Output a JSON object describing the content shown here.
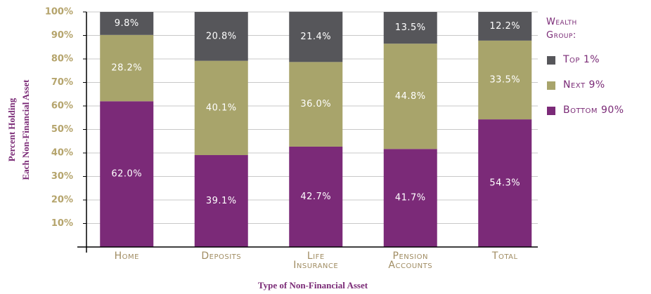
{
  "chart_data": {
    "type": "stacked_bar",
    "x_label": "Type of Non-Financial Asset",
    "y_label": [
      "Percent Holding",
      "Each Non-Financial Asset"
    ],
    "categories": [
      "Home",
      "Deposits",
      "Life Insurance",
      "Pension Accounts",
      "Total"
    ],
    "series": [
      {
        "name": "Bottom 90%",
        "color": "#7b2a78",
        "values": [
          62.0,
          39.1,
          42.7,
          41.7,
          54.3
        ],
        "value_labels": [
          "62.0%",
          "39.1%",
          "42.7%",
          "41.7%",
          "54.3%"
        ]
      },
      {
        "name": "Next 9%",
        "color": "#a8a46b",
        "values": [
          28.2,
          40.1,
          36.0,
          44.8,
          33.5
        ],
        "value_labels": [
          "28.2%",
          "40.1%",
          "36.0%",
          "44.8%",
          "33.5%"
        ]
      },
      {
        "name": "Top 1%",
        "color": "#56565a",
        "values": [
          9.8,
          20.8,
          21.4,
          13.5,
          12.2
        ],
        "value_labels": [
          "9.8%",
          "20.8%",
          "21.4%",
          "13.5%",
          "12.2%"
        ]
      }
    ],
    "legend_title": "Wealth Group:",
    "legend": "right",
    "ylim": [
      0,
      100
    ],
    "yticks": [
      {
        "value": 10,
        "label": "10%"
      },
      {
        "value": 20,
        "label": "20%"
      },
      {
        "value": 30,
        "label": "30%"
      },
      {
        "value": 40,
        "label": "40%"
      },
      {
        "value": 50,
        "label": "50%"
      },
      {
        "value": 60,
        "label": "60%"
      },
      {
        "value": 70,
        "label": "70%"
      },
      {
        "value": 80,
        "label": "80%"
      },
      {
        "value": 90,
        "label": "90%"
      },
      {
        "value": 100,
        "label": "100%"
      }
    ],
    "grid": true
  }
}
